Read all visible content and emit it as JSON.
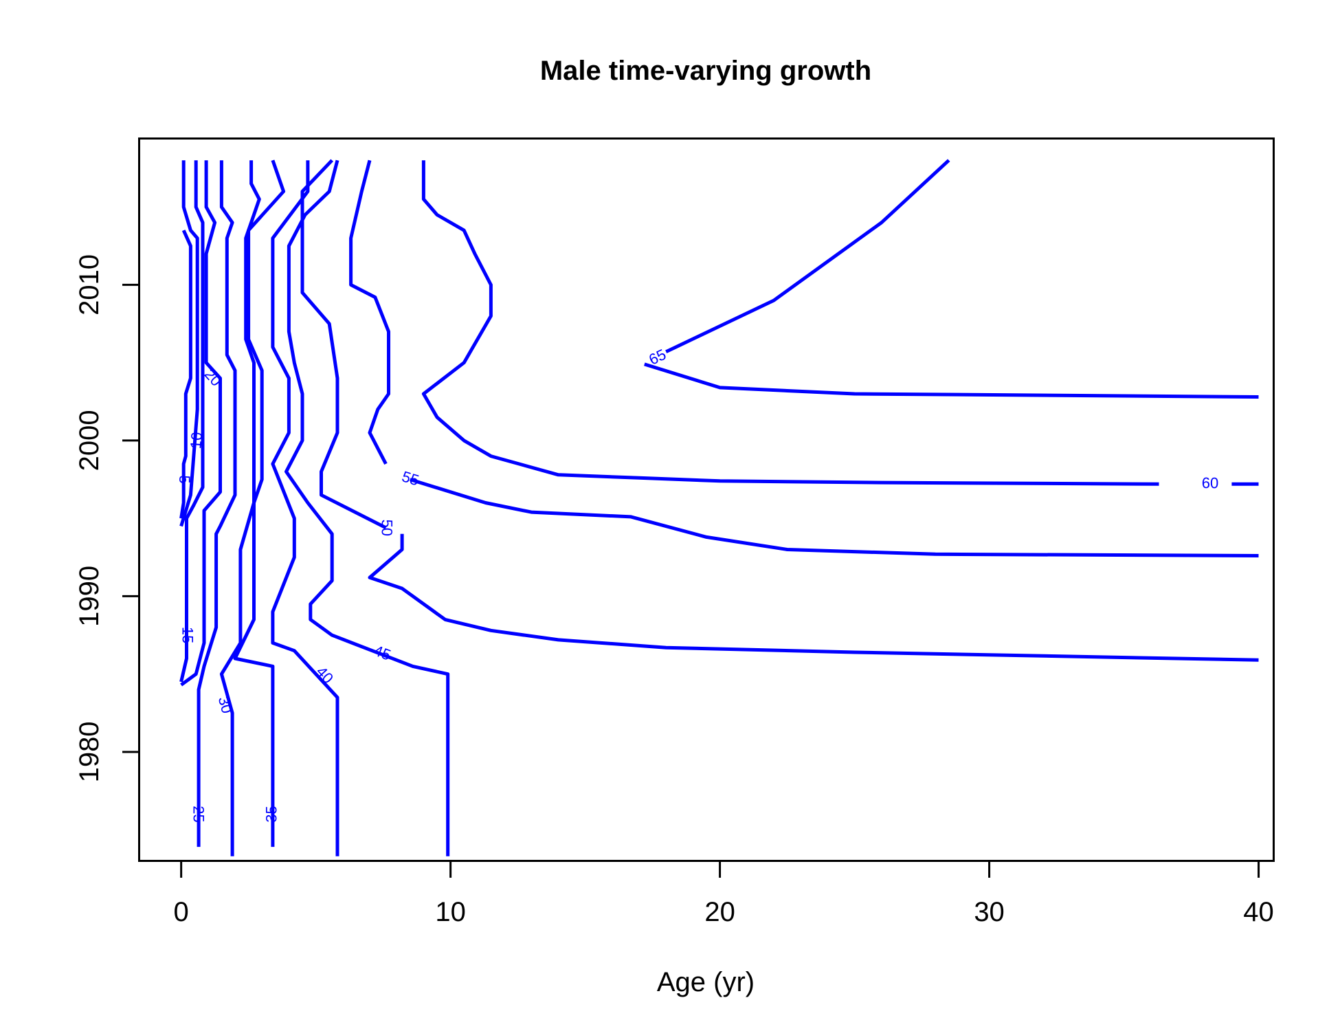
{
  "chart_data": {
    "type": "contour",
    "title": "Male time-varying growth",
    "xlabel": "Age (yr)",
    "ylabel": "",
    "xlim": [
      -1.56,
      40.56
    ],
    "ylim": [
      1973,
      2019.4
    ],
    "x_ticks": [
      0,
      10,
      20,
      30,
      40
    ],
    "x_tick_labels": [
      "0",
      "10",
      "20",
      "30",
      "40"
    ],
    "y_ticks": [
      1980,
      1990,
      2000,
      2010
    ],
    "y_tick_labels": [
      "1980",
      "1990",
      "2000",
      "2010"
    ],
    "grid": false,
    "line_color": "#0000FF",
    "contours": [
      {
        "level": "5",
        "label_at": [
          0.08,
          1997.5
        ],
        "points": [
          [
            0.09,
            2013.5
          ],
          [
            0.35,
            2012.5
          ],
          [
            0.35,
            2004
          ],
          [
            0.17,
            2003
          ],
          [
            0.17,
            1999
          ],
          [
            0.09,
            1998.5
          ],
          [
            0.09,
            1996
          ],
          [
            0.0,
            1995
          ]
        ]
      },
      {
        "level": "10",
        "label_at": [
          0.6,
          2000
        ],
        "points": [
          [
            0.09,
            2018
          ],
          [
            0.09,
            2015
          ],
          [
            0.35,
            2013.5
          ],
          [
            0.6,
            2013
          ],
          [
            0.6,
            2002
          ],
          [
            0.35,
            1996.5
          ],
          [
            0.0,
            1994.5
          ]
        ]
      },
      {
        "level": "15",
        "label_at": [
          0.2,
          1987.5
        ],
        "points": [
          [
            0.55,
            2018
          ],
          [
            0.55,
            2015
          ],
          [
            0.8,
            2014
          ],
          [
            0.8,
            2012
          ],
          [
            0.8,
            1997
          ],
          [
            0.45,
            1995.8
          ],
          [
            0.2,
            1995
          ],
          [
            0.2,
            1990
          ],
          [
            0.2,
            1986
          ],
          [
            0.0,
            1984.5
          ]
        ]
      },
      {
        "level": "20",
        "label_at": [
          1.15,
          2004
        ],
        "points": [
          [
            0.93,
            2018
          ],
          [
            0.93,
            2015
          ],
          [
            1.25,
            2014
          ],
          [
            0.93,
            2012
          ],
          [
            0.93,
            2005
          ],
          [
            1.45,
            2004
          ],
          [
            1.45,
            1996.7
          ],
          [
            0.85,
            1995.5
          ],
          [
            0.85,
            1993
          ],
          [
            0.85,
            1987
          ],
          [
            0.55,
            1985
          ],
          [
            0.0,
            1984.3
          ]
        ]
      },
      {
        "level": "25",
        "label_at": [
          0.6,
          1976
        ],
        "points": [
          [
            1.5,
            2018
          ],
          [
            1.5,
            2015
          ],
          [
            1.9,
            2014
          ],
          [
            1.7,
            2013
          ],
          [
            1.7,
            2005.5
          ],
          [
            2.0,
            2004.5
          ],
          [
            2.0,
            1996.5
          ],
          [
            1.45,
            1994.5
          ],
          [
            1.3,
            1994
          ],
          [
            1.3,
            1990
          ],
          [
            1.3,
            1988
          ],
          [
            0.85,
            1985.5
          ],
          [
            0.65,
            1984
          ],
          [
            0.65,
            1979
          ],
          [
            0.65,
            1973.9
          ]
        ]
      },
      {
        "level": "30",
        "label_at": [
          1.6,
          1983
        ],
        "points": [
          [
            1.9,
            1973.3
          ],
          [
            1.9,
            1982.5
          ],
          [
            1.5,
            1985
          ],
          [
            2.2,
            1987
          ],
          [
            2.2,
            1993
          ],
          [
            2.7,
            1996
          ],
          [
            2.7,
            2005
          ],
          [
            2.4,
            2006.5
          ],
          [
            2.4,
            2013
          ],
          [
            2.9,
            2015.5
          ],
          [
            2.6,
            2016.5
          ],
          [
            2.6,
            2018
          ]
        ]
      },
      {
        "level": "35",
        "label_at": [
          3.4,
          1976
        ],
        "points": [
          [
            3.4,
            1973.9
          ],
          [
            3.4,
            1980
          ],
          [
            3.4,
            1985.5
          ],
          [
            2.0,
            1986
          ],
          [
            2.7,
            1988.5
          ],
          [
            2.7,
            1996
          ],
          [
            3.0,
            1997.5
          ],
          [
            3.0,
            2004.5
          ],
          [
            2.5,
            2006.5
          ],
          [
            2.5,
            2013.5
          ],
          [
            3.8,
            2016
          ],
          [
            3.4,
            2018
          ]
        ]
      },
      {
        "level": "40",
        "label_at": [
          5.3,
          1984.9
        ],
        "points": [
          [
            5.8,
            1973.3
          ],
          [
            5.8,
            1983.5
          ],
          [
            4.2,
            1986.5
          ],
          [
            3.4,
            1987
          ],
          [
            3.4,
            1989
          ],
          [
            4.2,
            1992.5
          ],
          [
            4.2,
            1995
          ],
          [
            3.4,
            1998.5
          ],
          [
            4.0,
            2000.5
          ],
          [
            4.0,
            2004
          ],
          [
            3.4,
            2006
          ],
          [
            3.4,
            2013
          ],
          [
            4.7,
            2016
          ],
          [
            4.7,
            2018
          ]
        ]
      },
      {
        "level": "45",
        "label_at": [
          7.45,
          1986.3
        ],
        "points": [
          [
            9.9,
            1973.3
          ],
          [
            9.9,
            1985
          ],
          [
            8.6,
            1985.5
          ],
          [
            5.6,
            1987.5
          ],
          [
            4.8,
            1988.5
          ],
          [
            4.8,
            1989.5
          ],
          [
            5.6,
            1991
          ],
          [
            5.6,
            1994
          ],
          [
            4.7,
            1996
          ],
          [
            3.9,
            1998
          ],
          [
            4.5,
            2000
          ],
          [
            4.5,
            2003
          ],
          [
            4.2,
            2005
          ],
          [
            4.0,
            2007
          ],
          [
            4.0,
            2012.5
          ],
          [
            4.6,
            2014.5
          ],
          [
            5.5,
            2016
          ],
          [
            5.8,
            2018
          ]
        ]
      },
      {
        "level": "50",
        "label_at": [
          7.6,
          1994.4
        ],
        "points": [
          [
            8.2,
            1994
          ],
          [
            8.2,
            1993
          ],
          [
            7.0,
            1991.2
          ],
          [
            8.2,
            1990.5
          ],
          [
            9.8,
            1988.5
          ],
          [
            11.5,
            1987.8
          ],
          [
            14.0,
            1987.2
          ],
          [
            18.0,
            1986.7
          ],
          [
            25.0,
            1986.4
          ],
          [
            40.0,
            1985.9
          ]
        ]
      },
      {
        "level": "50",
        "label_at": null,
        "points": [
          [
            7.6,
            1994.4
          ],
          [
            5.2,
            1996.5
          ],
          [
            5.2,
            1998
          ],
          [
            5.8,
            2000.5
          ],
          [
            5.8,
            2004
          ],
          [
            5.5,
            2007.5
          ],
          [
            4.5,
            2009.5
          ],
          [
            4.5,
            2016
          ],
          [
            5.6,
            2018
          ]
        ]
      },
      {
        "level": "55",
        "label_at": [
          8.5,
          1997.5
        ],
        "points": [
          [
            8.5,
            1997.5
          ],
          [
            11.3,
            1996
          ],
          [
            13.0,
            1995.4
          ],
          [
            16.7,
            1995.1
          ],
          [
            19.5,
            1993.8
          ],
          [
            22.5,
            1993
          ],
          [
            28.0,
            1992.7
          ],
          [
            40.0,
            1992.6
          ]
        ]
      },
      {
        "level": "55",
        "label_at": null,
        "points": [
          [
            7.6,
            1998.5
          ],
          [
            7.0,
            2000.5
          ],
          [
            7.3,
            2002
          ],
          [
            7.7,
            2003
          ],
          [
            7.7,
            2007
          ],
          [
            7.2,
            2009.2
          ],
          [
            6.3,
            2010
          ],
          [
            6.3,
            2013
          ],
          [
            6.7,
            2016
          ],
          [
            7.0,
            2018
          ]
        ]
      },
      {
        "level": "60",
        "label_at": [
          38.2,
          1997.2
        ],
        "points": [
          [
            9.0,
            2018
          ],
          [
            9.0,
            2015.5
          ],
          [
            9.5,
            2014.5
          ],
          [
            10.5,
            2013.5
          ],
          [
            10.9,
            2012
          ],
          [
            11.5,
            2010
          ],
          [
            11.5,
            2008
          ],
          [
            11.0,
            2006.5
          ],
          [
            10.5,
            2005
          ],
          [
            9.0,
            2003
          ],
          [
            9.5,
            2001.5
          ],
          [
            10.5,
            2000
          ],
          [
            11.5,
            1999
          ],
          [
            14.0,
            1997.8
          ],
          [
            17.0,
            1997.6
          ],
          [
            20.0,
            1997.4
          ],
          [
            26.0,
            1997.3
          ],
          [
            36.3,
            1997.2
          ]
        ]
      },
      {
        "level": "60",
        "label_at": null,
        "points": [
          [
            39.0,
            1997.2
          ],
          [
            40.0,
            1997.2
          ]
        ]
      },
      {
        "level": "65",
        "label_at": [
          17.7,
          2005.3
        ],
        "points": [
          [
            18.0,
            2005.7
          ],
          [
            22.0,
            2009
          ],
          [
            26.0,
            2014
          ],
          [
            28.5,
            2018
          ]
        ]
      },
      {
        "level": "65",
        "label_at": null,
        "points": [
          [
            17.2,
            2004.9
          ],
          [
            20.0,
            2003.4
          ],
          [
            25.0,
            2003.0
          ],
          [
            40.0,
            2002.8
          ]
        ]
      }
    ]
  }
}
